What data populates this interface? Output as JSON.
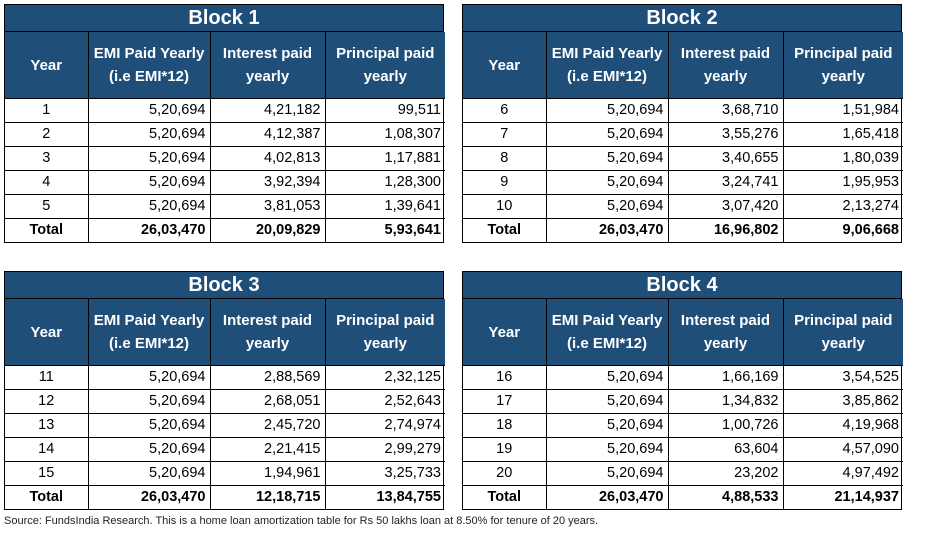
{
  "headers": {
    "year": "Year",
    "emi_line1": "EMI Paid Yearly",
    "emi_line2": "(i.e EMI*12)",
    "interest_line1": "Interest paid",
    "interest_line2": "yearly",
    "principal_line1": "Principal paid",
    "principal_line2": "yearly"
  },
  "blocks": [
    {
      "title": "Block 1",
      "rows": [
        [
          "1",
          "5,20,694",
          "4,21,182",
          "99,511"
        ],
        [
          "2",
          "5,20,694",
          "4,12,387",
          "1,08,307"
        ],
        [
          "3",
          "5,20,694",
          "4,02,813",
          "1,17,881"
        ],
        [
          "4",
          "5,20,694",
          "3,92,394",
          "1,28,300"
        ],
        [
          "5",
          "5,20,694",
          "3,81,053",
          "1,39,641"
        ]
      ],
      "total": [
        "Total",
        "26,03,470",
        "20,09,829",
        "5,93,641"
      ]
    },
    {
      "title": "Block 2",
      "rows": [
        [
          "6",
          "5,20,694",
          "3,68,710",
          "1,51,984"
        ],
        [
          "7",
          "5,20,694",
          "3,55,276",
          "1,65,418"
        ],
        [
          "8",
          "5,20,694",
          "3,40,655",
          "1,80,039"
        ],
        [
          "9",
          "5,20,694",
          "3,24,741",
          "1,95,953"
        ],
        [
          "10",
          "5,20,694",
          "3,07,420",
          "2,13,274"
        ]
      ],
      "total": [
        "Total",
        "26,03,470",
        "16,96,802",
        "9,06,668"
      ]
    },
    {
      "title": "Block 3",
      "rows": [
        [
          "11",
          "5,20,694",
          "2,88,569",
          "2,32,125"
        ],
        [
          "12",
          "5,20,694",
          "2,68,051",
          "2,52,643"
        ],
        [
          "13",
          "5,20,694",
          "2,45,720",
          "2,74,974"
        ],
        [
          "14",
          "5,20,694",
          "2,21,415",
          "2,99,279"
        ],
        [
          "15",
          "5,20,694",
          "1,94,961",
          "3,25,733"
        ]
      ],
      "total": [
        "Total",
        "26,03,470",
        "12,18,715",
        "13,84,755"
      ]
    },
    {
      "title": "Block 4",
      "rows": [
        [
          "16",
          "5,20,694",
          "1,66,169",
          "3,54,525"
        ],
        [
          "17",
          "5,20,694",
          "1,34,832",
          "3,85,862"
        ],
        [
          "18",
          "5,20,694",
          "1,00,726",
          "4,19,968"
        ],
        [
          "19",
          "5,20,694",
          "63,604",
          "4,57,090"
        ],
        [
          "20",
          "5,20,694",
          "23,202",
          "4,97,492"
        ]
      ],
      "total": [
        "Total",
        "26,03,470",
        "4,88,533",
        "21,14,937"
      ]
    }
  ],
  "source": "Source: FundsIndia Research. This is a home loan amortization table for Rs 50 lakhs loan at 8.50% for tenure of 20 years.",
  "colors": {
    "header_bg": "#1f4e79",
    "header_text": "#ffffff",
    "border": "#000000"
  }
}
